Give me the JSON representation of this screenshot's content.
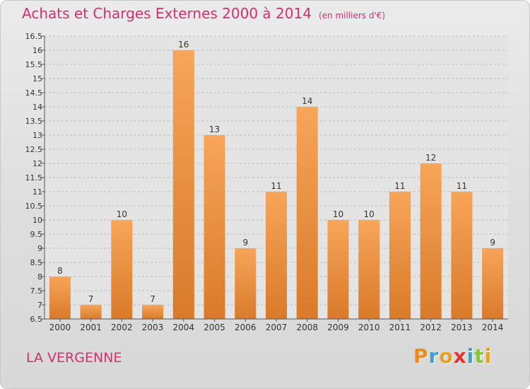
{
  "header": {
    "title": "Achats et Charges Externes 2000 à 2014",
    "unit": "(en milliers d'€)"
  },
  "footer": {
    "commune": "LA VERGENNE",
    "logo_text": "Proxiti",
    "logo_colors": [
      "#f08a1c",
      "#3aa0d8",
      "#e8a020",
      "#e8342a",
      "#3aa0d8",
      "#8ac43a",
      "#e8a020"
    ]
  },
  "colors": {
    "bar_top": "#f7a55a",
    "bar_bottom": "#d97a2a",
    "title": "#d3306f"
  },
  "chart_data": {
    "type": "bar",
    "title": "Achats et Charges Externes 2000 à 2014",
    "xlabel": "",
    "ylabel": "",
    "ylim": [
      6.5,
      16.5
    ],
    "yticks": [
      6.5,
      7,
      7.5,
      8,
      8.5,
      9,
      9.5,
      10,
      10.5,
      11,
      11.5,
      12,
      12.5,
      13,
      13.5,
      14,
      14.5,
      15,
      15.5,
      16,
      16.5
    ],
    "grid": true,
    "categories": [
      "2000",
      "2001",
      "2002",
      "2003",
      "2004",
      "2005",
      "2006",
      "2007",
      "2008",
      "2009",
      "2010",
      "2011",
      "2012",
      "2013",
      "2014"
    ],
    "values": [
      8,
      7,
      10,
      7,
      16,
      13,
      9,
      11,
      14,
      10,
      10,
      11,
      12,
      11,
      9
    ]
  }
}
